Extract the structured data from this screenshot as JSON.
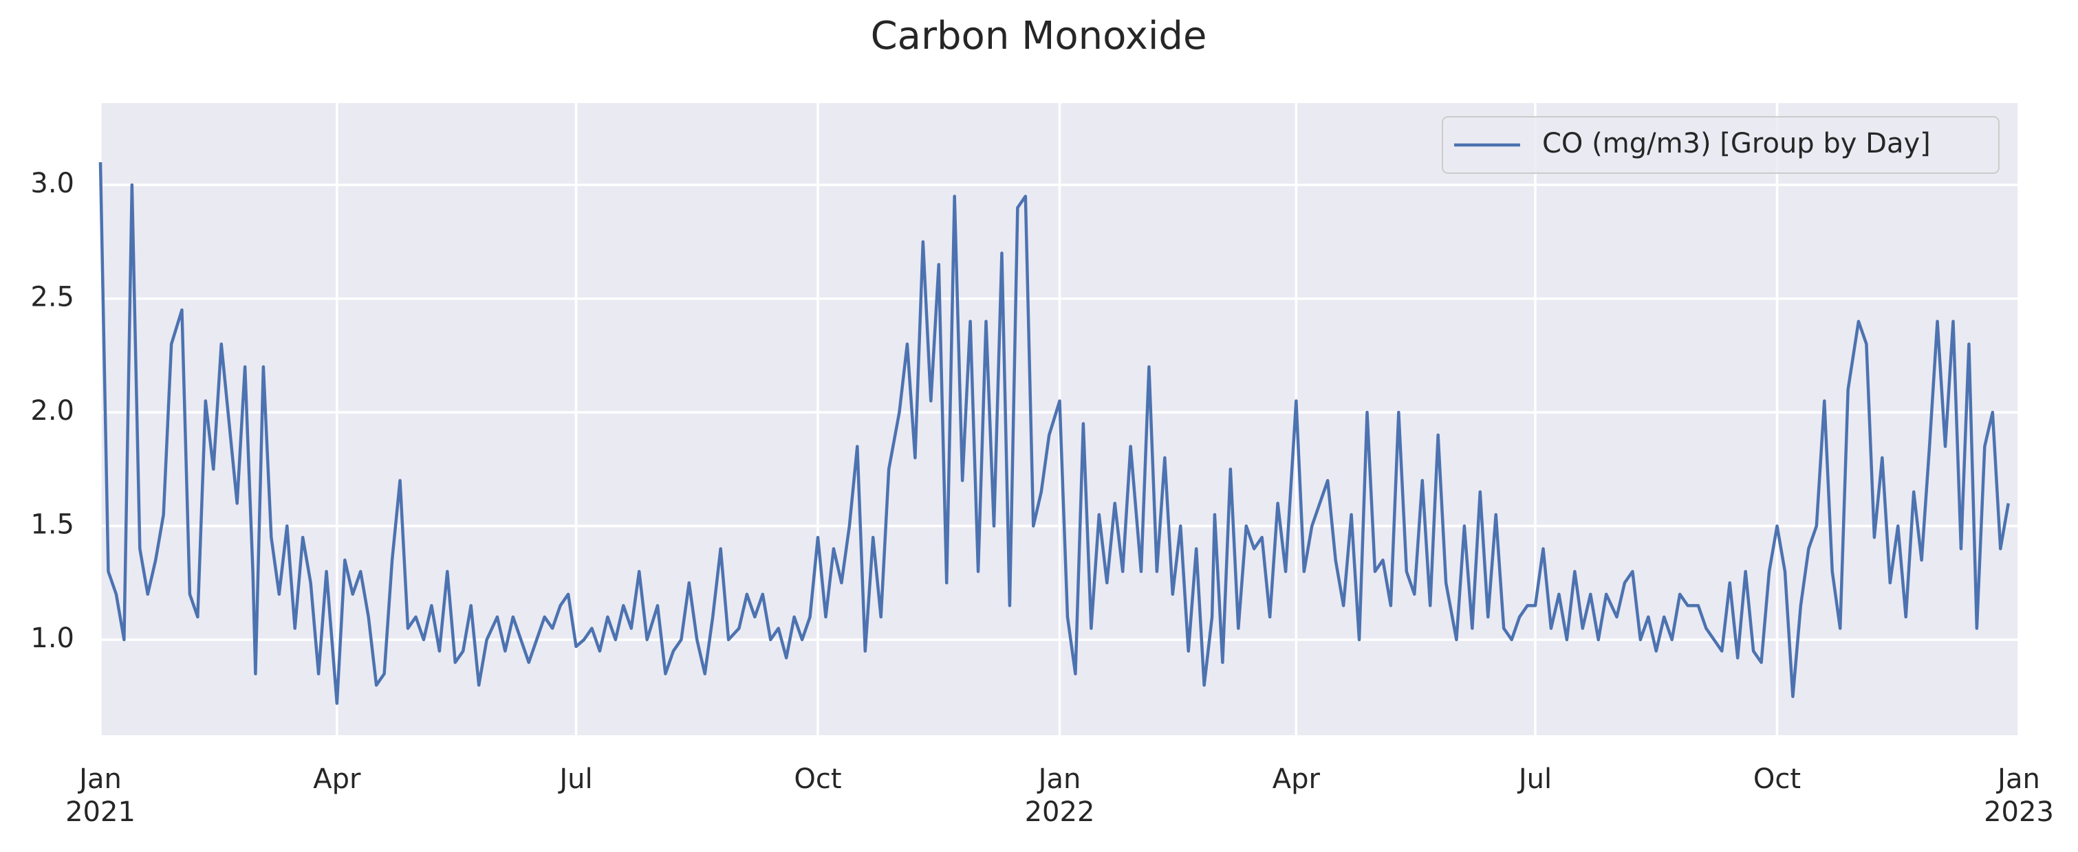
{
  "chart_data": {
    "type": "line",
    "title": "Carbon Monoxide",
    "series": [
      {
        "name": "CO (mg/m3) [Group by Day]",
        "color": "#4c72b0",
        "values": [
          3.1,
          1.3,
          1.2,
          1.0,
          3.0,
          1.4,
          1.2,
          1.35,
          1.55,
          2.3,
          2.45,
          1.2,
          1.1,
          2.05,
          1.75,
          2.3,
          1.95,
          1.6,
          2.2,
          1.3,
          0.85,
          2.2,
          1.45,
          1.2,
          1.5,
          1.05,
          1.45,
          1.25,
          0.85,
          1.3,
          0.72,
          1.35,
          1.2,
          1.3,
          1.1,
          0.8,
          0.85,
          1.35,
          1.7,
          1.05,
          1.1,
          1.0,
          1.15,
          0.95,
          1.3,
          0.9,
          0.95,
          1.15,
          0.8,
          1.0,
          1.1,
          0.95,
          1.1,
          1.0,
          0.9,
          1.0,
          1.1,
          1.05,
          1.15,
          1.2,
          0.97,
          1.0,
          1.05,
          0.95,
          1.1,
          1.0,
          1.15,
          1.05,
          1.3,
          1.0,
          1.15,
          0.85,
          0.95,
          1.0,
          1.25,
          1.0,
          0.85,
          1.1,
          1.4,
          1.0,
          1.05,
          1.2,
          1.1,
          1.2,
          1.0,
          1.05,
          0.92,
          1.1,
          1.0,
          1.1,
          1.45,
          1.1,
          1.4,
          1.25,
          1.5,
          1.85,
          0.95,
          1.45,
          1.1,
          1.75,
          2.0,
          2.3,
          1.8,
          2.75,
          2.05,
          2.65,
          1.25,
          2.95,
          1.7,
          2.4,
          1.3,
          2.4,
          1.5,
          2.7,
          1.15,
          2.9,
          2.95,
          1.5,
          1.65,
          1.9,
          2.05,
          1.1,
          0.85,
          1.95,
          1.05,
          1.55,
          1.25,
          1.6,
          1.3,
          1.85,
          1.3,
          2.2,
          1.3,
          1.8,
          1.2,
          1.5,
          0.95,
          1.4,
          0.8,
          1.1,
          1.55,
          0.9,
          1.75,
          1.05,
          1.5,
          1.4,
          1.45,
          1.1,
          1.6,
          1.3,
          2.05,
          1.3,
          1.5,
          1.6,
          1.7,
          1.35,
          1.15,
          1.55,
          1.0,
          2.0,
          1.3,
          1.35,
          1.15,
          2.0,
          1.3,
          1.2,
          1.7,
          1.15,
          1.9,
          1.25,
          1.0,
          1.5,
          1.05,
          1.65,
          1.1,
          1.55,
          1.05,
          1.0,
          1.1,
          1.15,
          1.15,
          1.4,
          1.05,
          1.2,
          1.0,
          1.3,
          1.05,
          1.2,
          1.0,
          1.2,
          1.1,
          1.25,
          1.3,
          1.0,
          1.1,
          0.95,
          1.1,
          1.0,
          1.2,
          1.15,
          1.15,
          1.05,
          1.0,
          0.95,
          1.25,
          0.92,
          1.3,
          0.95,
          0.9,
          1.3,
          1.5,
          1.3,
          0.75,
          1.15,
          1.4,
          1.5,
          2.05,
          1.3,
          1.05,
          2.1,
          2.4,
          2.3,
          1.45,
          1.8,
          1.25,
          1.5,
          1.1,
          1.65,
          1.35,
          1.85,
          2.4,
          1.85,
          2.4,
          1.4,
          2.3,
          1.05,
          1.85,
          2.0,
          1.4,
          1.6
        ]
      }
    ],
    "x": [
      "2021-01-01",
      "2021-01-04",
      "2021-01-07",
      "2021-01-10",
      "2021-01-13",
      "2021-01-16",
      "2021-01-19",
      "2021-01-22",
      "2021-01-25",
      "2021-01-28",
      "2021-02-01",
      "2021-02-04",
      "2021-02-07",
      "2021-02-10",
      "2021-02-13",
      "2021-02-16",
      "2021-02-19",
      "2021-02-22",
      "2021-02-25",
      "2021-02-28",
      "2021-03-01",
      "2021-03-04",
      "2021-03-07",
      "2021-03-10",
      "2021-03-13",
      "2021-03-16",
      "2021-03-19",
      "2021-03-22",
      "2021-03-25",
      "2021-03-28",
      "2021-04-01",
      "2021-04-04",
      "2021-04-07",
      "2021-04-10",
      "2021-04-13",
      "2021-04-16",
      "2021-04-19",
      "2021-04-22",
      "2021-04-25",
      "2021-04-28",
      "2021-05-01",
      "2021-05-04",
      "2021-05-07",
      "2021-05-10",
      "2021-05-13",
      "2021-05-16",
      "2021-05-19",
      "2021-05-22",
      "2021-05-25",
      "2021-05-28",
      "2021-06-01",
      "2021-06-04",
      "2021-06-07",
      "2021-06-10",
      "2021-06-13",
      "2021-06-16",
      "2021-06-19",
      "2021-06-22",
      "2021-06-25",
      "2021-06-28",
      "2021-07-01",
      "2021-07-04",
      "2021-07-07",
      "2021-07-10",
      "2021-07-13",
      "2021-07-16",
      "2021-07-19",
      "2021-07-22",
      "2021-07-25",
      "2021-07-28",
      "2021-08-01",
      "2021-08-04",
      "2021-08-07",
      "2021-08-10",
      "2021-08-13",
      "2021-08-16",
      "2021-08-19",
      "2021-08-22",
      "2021-08-25",
      "2021-08-28",
      "2021-09-01",
      "2021-09-04",
      "2021-09-07",
      "2021-09-10",
      "2021-09-13",
      "2021-09-16",
      "2021-09-19",
      "2021-09-22",
      "2021-09-25",
      "2021-09-28",
      "2021-10-01",
      "2021-10-04",
      "2021-10-07",
      "2021-10-10",
      "2021-10-13",
      "2021-10-16",
      "2021-10-19",
      "2021-10-22",
      "2021-10-25",
      "2021-10-28",
      "2021-11-01",
      "2021-11-04",
      "2021-11-07",
      "2021-11-10",
      "2021-11-13",
      "2021-11-16",
      "2021-11-19",
      "2021-11-22",
      "2021-11-25",
      "2021-11-28",
      "2021-12-01",
      "2021-12-04",
      "2021-12-07",
      "2021-12-10",
      "2021-12-13",
      "2021-12-16",
      "2021-12-19",
      "2021-12-22",
      "2021-12-25",
      "2021-12-28",
      "2022-01-01",
      "2022-01-04",
      "2022-01-07",
      "2022-01-10",
      "2022-01-13",
      "2022-01-16",
      "2022-01-19",
      "2022-01-22",
      "2022-01-25",
      "2022-01-28",
      "2022-02-01",
      "2022-02-04",
      "2022-02-07",
      "2022-02-10",
      "2022-02-13",
      "2022-02-16",
      "2022-02-19",
      "2022-02-22",
      "2022-02-25",
      "2022-02-28",
      "2022-03-01",
      "2022-03-04",
      "2022-03-07",
      "2022-03-10",
      "2022-03-13",
      "2022-03-16",
      "2022-03-19",
      "2022-03-22",
      "2022-03-25",
      "2022-03-28",
      "2022-04-01",
      "2022-04-04",
      "2022-04-07",
      "2022-04-10",
      "2022-04-13",
      "2022-04-16",
      "2022-04-19",
      "2022-04-22",
      "2022-04-25",
      "2022-04-28",
      "2022-05-01",
      "2022-05-04",
      "2022-05-07",
      "2022-05-10",
      "2022-05-13",
      "2022-05-16",
      "2022-05-19",
      "2022-05-22",
      "2022-05-25",
      "2022-05-28",
      "2022-06-01",
      "2022-06-04",
      "2022-06-07",
      "2022-06-10",
      "2022-06-13",
      "2022-06-16",
      "2022-06-19",
      "2022-06-22",
      "2022-06-25",
      "2022-06-28",
      "2022-07-01",
      "2022-07-04",
      "2022-07-07",
      "2022-07-10",
      "2022-07-13",
      "2022-07-16",
      "2022-07-19",
      "2022-07-22",
      "2022-07-25",
      "2022-07-28",
      "2022-08-01",
      "2022-08-04",
      "2022-08-07",
      "2022-08-10",
      "2022-08-13",
      "2022-08-16",
      "2022-08-19",
      "2022-08-22",
      "2022-08-25",
      "2022-08-28",
      "2022-09-01",
      "2022-09-04",
      "2022-09-07",
      "2022-09-10",
      "2022-09-13",
      "2022-09-16",
      "2022-09-19",
      "2022-09-22",
      "2022-09-25",
      "2022-09-28",
      "2022-10-01",
      "2022-10-04",
      "2022-10-07",
      "2022-10-10",
      "2022-10-13",
      "2022-10-16",
      "2022-10-19",
      "2022-10-22",
      "2022-10-25",
      "2022-10-28",
      "2022-11-01",
      "2022-11-04",
      "2022-11-07",
      "2022-11-10",
      "2022-11-13",
      "2022-11-16",
      "2022-11-19",
      "2022-11-22",
      "2022-11-25",
      "2022-11-28",
      "2022-12-01",
      "2022-12-04",
      "2022-12-07",
      "2022-12-10",
      "2022-12-13",
      "2022-12-16",
      "2022-12-19",
      "2022-12-22",
      "2022-12-25",
      "2022-12-28"
    ],
    "xlim": [
      "2021-01-01",
      "2023-01-01"
    ],
    "xticks": [
      {
        "value": "2021-01-01",
        "label": "Jan\n2021"
      },
      {
        "value": "2021-04-01",
        "label": "Apr"
      },
      {
        "value": "2021-07-01",
        "label": "Jul"
      },
      {
        "value": "2021-10-01",
        "label": "Oct"
      },
      {
        "value": "2022-01-01",
        "label": "Jan\n2022"
      },
      {
        "value": "2022-04-01",
        "label": "Apr"
      },
      {
        "value": "2022-07-01",
        "label": "Jul"
      },
      {
        "value": "2022-10-01",
        "label": "Oct"
      },
      {
        "value": "2023-01-01",
        "label": "Jan\n2023"
      }
    ],
    "ylim": [
      0.58,
      3.36
    ],
    "yticks": [
      {
        "value": 1,
        "label": "1.0"
      },
      {
        "value": 1.5,
        "label": "1.5"
      },
      {
        "value": 2,
        "label": "2.0"
      },
      {
        "value": 2.5,
        "label": "2.5"
      },
      {
        "value": 3,
        "label": "3.0"
      }
    ],
    "grid": true,
    "legend": "upper right"
  }
}
